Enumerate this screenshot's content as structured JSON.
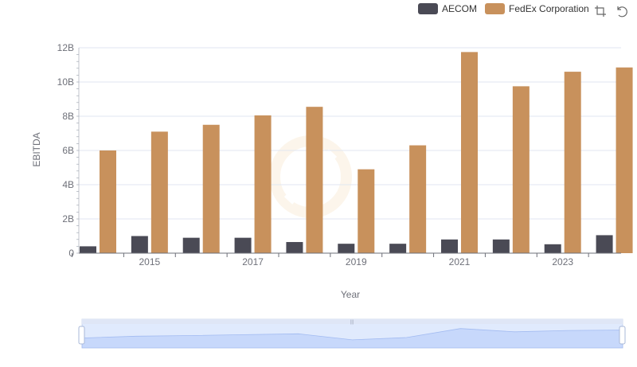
{
  "legend": [
    {
      "name": "AECOM",
      "color": "#4a4a55"
    },
    {
      "name": "FedEx Corporation",
      "color": "#c8915c"
    }
  ],
  "toolbox": {
    "zoom_icon": "zoom-select-icon",
    "restore_icon": "zoom-reset-icon"
  },
  "chart_data": {
    "type": "bar",
    "xlabel": "Year",
    "ylabel": "EBITDA",
    "ylim": [
      0,
      12000000000
    ],
    "yticks": [
      "0",
      "2B",
      "4B",
      "6B",
      "8B",
      "10B",
      "12B"
    ],
    "xtick_labels": [
      "2015",
      "2017",
      "2019",
      "2021",
      "2023"
    ],
    "categories": [
      "2014",
      "2015",
      "2016",
      "2017",
      "2018",
      "2019",
      "2020",
      "2021",
      "2022",
      "2023",
      "2024"
    ],
    "grid": true,
    "legend_position": "top-right",
    "series": [
      {
        "name": "AECOM",
        "color": "#4a4a55",
        "values": [
          400000000,
          1000000000,
          900000000,
          900000000,
          650000000,
          550000000,
          550000000,
          800000000,
          800000000,
          520000000,
          1050000000
        ]
      },
      {
        "name": "FedEx Corporation",
        "color": "#c8915c",
        "values": [
          6000000000,
          7100000000,
          7500000000,
          8050000000,
          8550000000,
          4900000000,
          6300000000,
          11750000000,
          9750000000,
          10600000000,
          10850000000
        ]
      }
    ]
  }
}
